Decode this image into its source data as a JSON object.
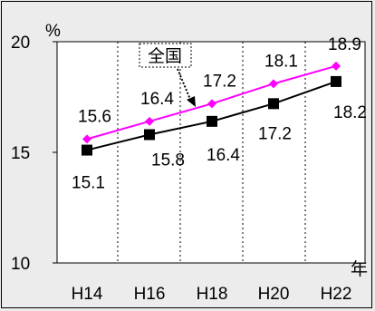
{
  "chart_data": {
    "type": "line",
    "categories": [
      "H14",
      "H16",
      "H18",
      "H20",
      "H22"
    ],
    "series": [
      {
        "name": "全国",
        "color": "#ff00ff",
        "marker": "diamond",
        "values": [
          15.6,
          16.4,
          17.2,
          18.1,
          18.9
        ]
      },
      {
        "name": "",
        "color": "#000000",
        "marker": "square",
        "values": [
          15.1,
          15.8,
          16.4,
          17.2,
          18.2
        ]
      }
    ],
    "y_axis": {
      "min": 10,
      "max": 20,
      "ticks": [
        "10",
        "15",
        "20"
      ],
      "unit": "%"
    },
    "x_axis": {
      "unit": "年"
    },
    "legend": "callout pointing to upper line",
    "grid": "vertical dashed"
  }
}
